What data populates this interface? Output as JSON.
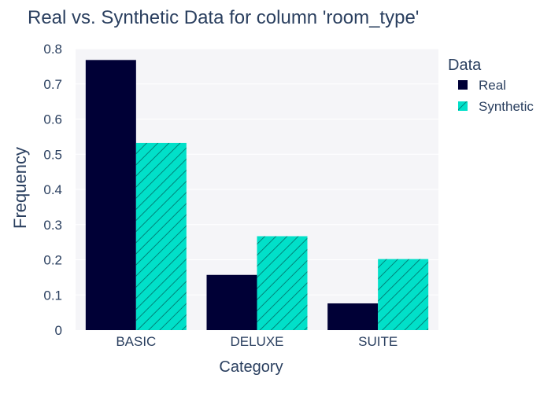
{
  "chart_data": {
    "type": "bar",
    "title": "Real vs. Synthetic Data for column 'room_type'",
    "xlabel": "Category",
    "ylabel": "Frequency",
    "categories": [
      "BASIC",
      "DELUXE",
      "SUITE"
    ],
    "ylim": [
      0,
      0.8
    ],
    "yticks": [
      0,
      0.1,
      0.2,
      0.3,
      0.4,
      0.5,
      0.6,
      0.7,
      0.8
    ],
    "ytick_labels": [
      "0",
      "0.1",
      "0.2",
      "0.3",
      "0.4",
      "0.5",
      "0.6",
      "0.7",
      "0.8"
    ],
    "grid": true,
    "legend": {
      "title": "Data",
      "placement": "right"
    },
    "series": [
      {
        "name": "Real",
        "values": [
          0.768,
          0.157,
          0.076
        ],
        "color": "#000036",
        "pattern": "solid"
      },
      {
        "name": "Synthetic",
        "values": [
          0.532,
          0.267,
          0.202
        ],
        "color": "#01E0C9",
        "pattern": "diagonal-hatch"
      }
    ]
  },
  "colors": {
    "plot_background": "#F5F5F8",
    "gridline": "#FFFFFF",
    "text": "#2A3F5F",
    "hatch": "#00847A"
  }
}
